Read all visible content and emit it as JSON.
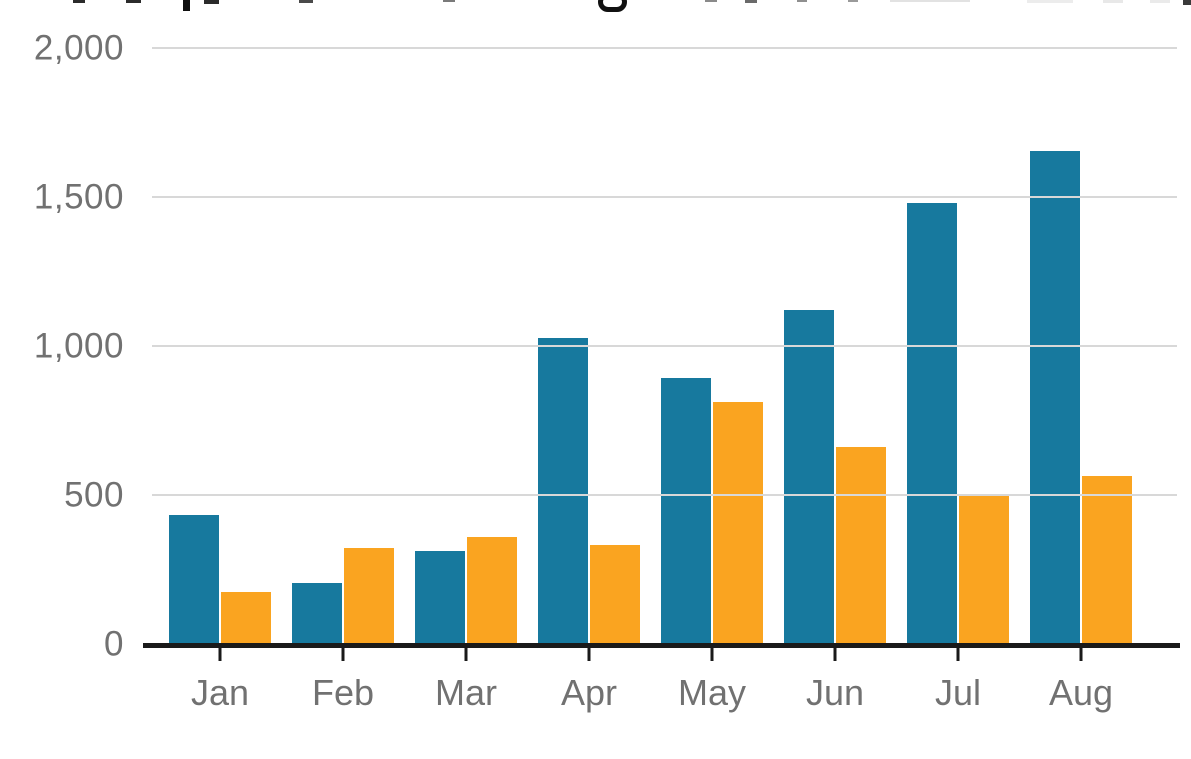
{
  "chart_data": {
    "type": "bar",
    "title": "",
    "categories": [
      "Jan",
      "Feb",
      "Mar",
      "Apr",
      "May",
      "Jun",
      "Jul",
      "Aug"
    ],
    "series": [
      {
        "name": "teal",
        "color": "#17799E",
        "values": [
          430,
          200,
          310,
          1025,
          890,
          1120,
          1480,
          1655
        ]
      },
      {
        "name": "orange",
        "color": "#FAA420",
        "values": [
          170,
          320,
          355,
          330,
          810,
          660,
          500,
          560
        ]
      }
    ],
    "xlabel": "",
    "ylabel": "",
    "ylim": [
      0,
      2000
    ],
    "y_ticks": [
      {
        "label": "2,000",
        "value": 2000
      },
      {
        "label": "1,500",
        "value": 1500
      },
      {
        "label": "1,000",
        "value": 1000
      },
      {
        "label": "500",
        "value": 500
      },
      {
        "label": "0",
        "value": 0
      }
    ],
    "grid": "horizontal",
    "legend": "none"
  },
  "colors": {
    "background": "#FFFFFF",
    "gridline": "#D8D8D8",
    "axis": "#1A1A1A",
    "tick_label": "#717171",
    "series_teal": "#17799E",
    "series_orange": "#FAA420"
  }
}
